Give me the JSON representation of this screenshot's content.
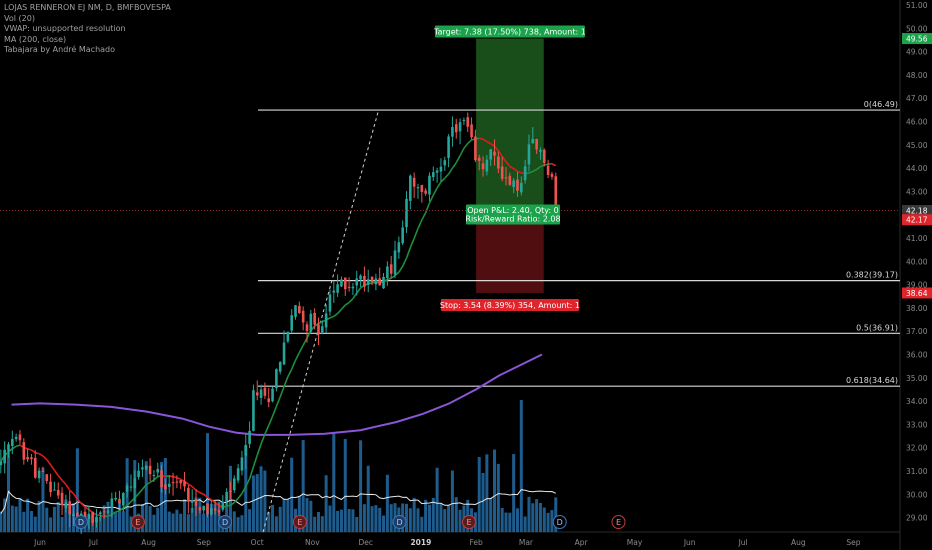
{
  "chart_data": {
    "type": "candlestick",
    "symbol_line": "LOJAS RENNERON EJ NM, D, BMFBOVESPA",
    "indicators": [
      "Vol (20)",
      "VWAP: unsupported resolution",
      "MA (200, close)",
      "Tabajara by André Machado"
    ],
    "y_axis": {
      "range": [
        28.4,
        51.4
      ],
      "ticks": [
        "29.00",
        "30.00",
        "31.00",
        "32.00",
        "33.00",
        "34.00",
        "35.00",
        "36.00",
        "37.00",
        "38.00",
        "39.00",
        "40.00",
        "41.00",
        "42.00",
        "43.00",
        "44.00",
        "45.00",
        "46.00",
        "47.00",
        "48.00",
        "49.00",
        "50.00",
        "51.00"
      ],
      "price_tags": [
        {
          "label": "49.56",
          "value": 49.56,
          "color": "#1aa34a"
        },
        {
          "label": "42.18",
          "value": 42.18,
          "color": "#383838"
        },
        {
          "label": "42.17",
          "value": 42.17,
          "color": "#e0242c"
        },
        {
          "label": "38.64",
          "value": 38.64,
          "color": "#e0242c"
        }
      ]
    },
    "x_axis": {
      "labels": [
        "Jun",
        "Jul",
        "Aug",
        "Sep",
        "Oct",
        "Nov",
        "Dec",
        "2019",
        "Feb",
        "Mar",
        "Apr",
        "May",
        "Jun",
        "Jul",
        "Aug",
        "Sep"
      ],
      "days": [
        0,
        30,
        61,
        92,
        122,
        153,
        183,
        214,
        245,
        273,
        304,
        334,
        365,
        395,
        426,
        457
      ]
    },
    "fibonacci": [
      {
        "label": "0(46.49)",
        "value": 46.49
      },
      {
        "label": "0.382(39.17)",
        "value": 39.17
      },
      {
        "label": "0.5(36.91)",
        "value": 36.91
      },
      {
        "label": "0.618(34.64)",
        "value": 34.64
      }
    ],
    "position": {
      "target_label": "Target: 7.38 (17.50%) 738, Amount: 1",
      "stop_label": "Stop: 3.54 (8.39%) 354, Amount: 1",
      "pnl_label": "Open P&L: 2.40, Qty: 0",
      "rr_label": "Risk/Reward Ratio: 2.08",
      "entry": 42.18,
      "target": 49.56,
      "stop": 38.64
    },
    "events": [
      {
        "letter": "D",
        "day": 23,
        "type": "dividend"
      },
      {
        "letter": "E",
        "day": 55,
        "type": "earnings"
      },
      {
        "letter": "D",
        "day": 104,
        "type": "dividend"
      },
      {
        "letter": "E",
        "day": 146,
        "type": "earnings"
      },
      {
        "letter": "D",
        "day": 202,
        "type": "dividend"
      },
      {
        "letter": "E",
        "day": 241,
        "type": "earnings"
      },
      {
        "letter": "D",
        "day": 292,
        "type": "dividend"
      },
      {
        "letter": "E",
        "day": 325,
        "type": "earnings"
      }
    ],
    "ma200": [
      [
        -16,
        33.85
      ],
      [
        0,
        33.9
      ],
      [
        20,
        33.85
      ],
      [
        40,
        33.75
      ],
      [
        60,
        33.55
      ],
      [
        80,
        33.25
      ],
      [
        95,
        32.9
      ],
      [
        110,
        32.65
      ],
      [
        122,
        32.55
      ],
      [
        140,
        32.55
      ],
      [
        160,
        32.6
      ],
      [
        180,
        32.75
      ],
      [
        200,
        33.1
      ],
      [
        215,
        33.45
      ],
      [
        230,
        33.9
      ],
      [
        245,
        34.5
      ],
      [
        258,
        35.1
      ],
      [
        270,
        35.55
      ],
      [
        282,
        36.0
      ]
    ],
    "colors": {
      "up": "#26a69a",
      "down": "#ef5350",
      "ma200": "#8a55d8",
      "ma_short_down": "#e01b1b",
      "ma_short_up": "#1e8f3c",
      "fib": "#d8d8d8",
      "volume": "#1f5c8e",
      "target_zone": "#1d5c1f",
      "stop_zone": "#5e1014"
    }
  }
}
